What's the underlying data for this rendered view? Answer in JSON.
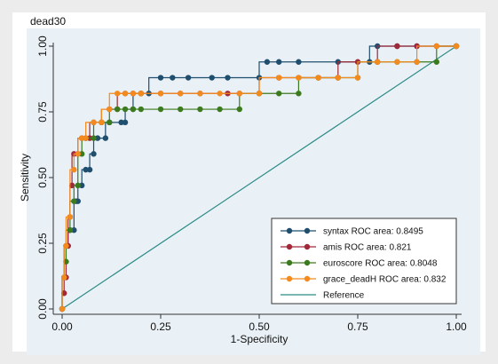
{
  "chart_data": {
    "type": "line",
    "title": "dead30",
    "xlabel": "1-Specificity",
    "ylabel": "Sensitivity",
    "xlim": [
      0,
      1
    ],
    "ylim": [
      0,
      1
    ],
    "xticks": [
      "0.00",
      "0.25",
      "0.50",
      "0.75",
      "1.00"
    ],
    "yticks": [
      "0.00",
      "0.25",
      "0.50",
      "0.75",
      "1.00"
    ],
    "grid": false,
    "legend_position": "bottom-right",
    "series": [
      {
        "name": "syntax ROC area: 0.8495",
        "color": "#1f4e6e",
        "x": [
          0,
          0.005,
          0.01,
          0.015,
          0.02,
          0.03,
          0.035,
          0.04,
          0.05,
          0.06,
          0.07,
          0.08,
          0.09,
          0.11,
          0.12,
          0.15,
          0.16,
          0.18,
          0.2,
          0.22,
          0.25,
          0.28,
          0.32,
          0.38,
          0.42,
          0.5,
          0.52,
          0.55,
          0.6,
          0.7,
          0.78,
          0.8,
          0.85,
          0.9,
          1.0
        ],
        "y": [
          0,
          0.12,
          0.24,
          0.24,
          0.3,
          0.3,
          0.41,
          0.41,
          0.47,
          0.53,
          0.53,
          0.59,
          0.65,
          0.65,
          0.71,
          0.71,
          0.71,
          0.76,
          0.82,
          0.82,
          0.88,
          0.88,
          0.88,
          0.88,
          0.88,
          0.88,
          0.94,
          0.94,
          0.94,
          0.94,
          0.94,
          1.0,
          1.0,
          1.0,
          1.0
        ]
      },
      {
        "name": "amis ROC area: 0.821",
        "color": "#a02838",
        "x": [
          0,
          0.005,
          0.01,
          0.015,
          0.02,
          0.025,
          0.03,
          0.04,
          0.05,
          0.06,
          0.07,
          0.08,
          0.1,
          0.12,
          0.14,
          0.16,
          0.18,
          0.2,
          0.25,
          0.3,
          0.35,
          0.42,
          0.45,
          0.5,
          0.55,
          0.6,
          0.65,
          0.7,
          0.75,
          0.8,
          0.85,
          0.9,
          0.95,
          1.0
        ],
        "y": [
          0,
          0.06,
          0.12,
          0.24,
          0.35,
          0.47,
          0.59,
          0.59,
          0.65,
          0.65,
          0.65,
          0.71,
          0.71,
          0.76,
          0.76,
          0.82,
          0.82,
          0.82,
          0.82,
          0.82,
          0.82,
          0.82,
          0.82,
          0.82,
          0.88,
          0.88,
          0.88,
          0.88,
          0.94,
          0.94,
          1.0,
          1.0,
          1.0,
          1.0
        ]
      },
      {
        "name": "euroscore ROC area: 0.8048",
        "color": "#3c7a1e",
        "x": [
          0,
          0.005,
          0.01,
          0.02,
          0.03,
          0.04,
          0.05,
          0.06,
          0.08,
          0.1,
          0.12,
          0.14,
          0.16,
          0.18,
          0.2,
          0.25,
          0.3,
          0.35,
          0.4,
          0.45,
          0.5,
          0.55,
          0.6,
          0.65,
          0.7,
          0.75,
          0.8,
          0.85,
          0.9,
          0.95,
          1.0
        ],
        "y": [
          0,
          0.12,
          0.18,
          0.3,
          0.41,
          0.47,
          0.59,
          0.65,
          0.65,
          0.71,
          0.71,
          0.76,
          0.76,
          0.76,
          0.76,
          0.76,
          0.76,
          0.76,
          0.76,
          0.76,
          0.82,
          0.82,
          0.82,
          0.88,
          0.88,
          0.88,
          0.94,
          0.94,
          0.94,
          0.94,
          1.0
        ]
      },
      {
        "name": "grace_deadH ROC area: 0.832",
        "color": "#f28a1e",
        "x": [
          0,
          0.005,
          0.01,
          0.02,
          0.03,
          0.04,
          0.05,
          0.06,
          0.08,
          0.1,
          0.12,
          0.14,
          0.16,
          0.18,
          0.2,
          0.25,
          0.3,
          0.35,
          0.4,
          0.45,
          0.5,
          0.55,
          0.6,
          0.65,
          0.7,
          0.75,
          0.8,
          0.85,
          0.9,
          0.95,
          1.0
        ],
        "y": [
          0,
          0.12,
          0.24,
          0.35,
          0.53,
          0.59,
          0.65,
          0.65,
          0.71,
          0.71,
          0.76,
          0.82,
          0.82,
          0.82,
          0.82,
          0.82,
          0.82,
          0.82,
          0.82,
          0.82,
          0.82,
          0.88,
          0.88,
          0.88,
          0.88,
          0.88,
          0.94,
          0.94,
          0.94,
          1.0,
          1.0
        ]
      }
    ],
    "reference": {
      "name": "Reference",
      "color": "#2a8a84",
      "x": [
        0,
        1
      ],
      "y": [
        0,
        1
      ]
    }
  }
}
